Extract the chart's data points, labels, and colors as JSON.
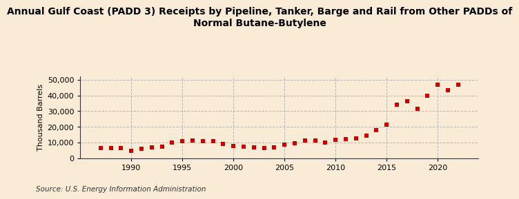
{
  "title": "Annual Gulf Coast (PADD 3) Receipts by Pipeline, Tanker, Barge and Rail from Other PADDs of\nNormal Butane-Butylene",
  "ylabel": "Thousand Barrels",
  "source": "Source: U.S. Energy Information Administration",
  "background_color": "#faebd7",
  "marker_color": "#cc0000",
  "grid_color": "#b0b0b0",
  "years": [
    1987,
    1988,
    1989,
    1990,
    1991,
    1992,
    1993,
    1994,
    1995,
    1996,
    1997,
    1998,
    1999,
    2000,
    2001,
    2002,
    2003,
    2004,
    2005,
    2006,
    2007,
    2008,
    2009,
    2010,
    2011,
    2012,
    2013,
    2014,
    2015,
    2016,
    2017,
    2018,
    2019,
    2020,
    2021,
    2022
  ],
  "values": [
    6500,
    6300,
    6200,
    4800,
    5800,
    6700,
    7200,
    9800,
    10800,
    11200,
    10800,
    10800,
    8800,
    7500,
    7200,
    7000,
    6500,
    6800,
    8500,
    9500,
    11000,
    11200,
    9800,
    11800,
    12000,
    12500,
    14500,
    17800,
    21500,
    34200,
    36200,
    31500,
    40000,
    47000,
    43500,
    47000
  ],
  "xlim": [
    1985,
    2024
  ],
  "ylim": [
    0,
    52000
  ],
  "xticks": [
    1990,
    1995,
    2000,
    2005,
    2010,
    2015,
    2020
  ],
  "yticks": [
    0,
    10000,
    20000,
    30000,
    40000,
    50000
  ],
  "ytick_labels": [
    "0",
    "10,000",
    "20,000",
    "30,000",
    "40,000",
    "50,000"
  ],
  "title_fontsize": 10,
  "axis_fontsize": 8,
  "source_fontsize": 7.5
}
